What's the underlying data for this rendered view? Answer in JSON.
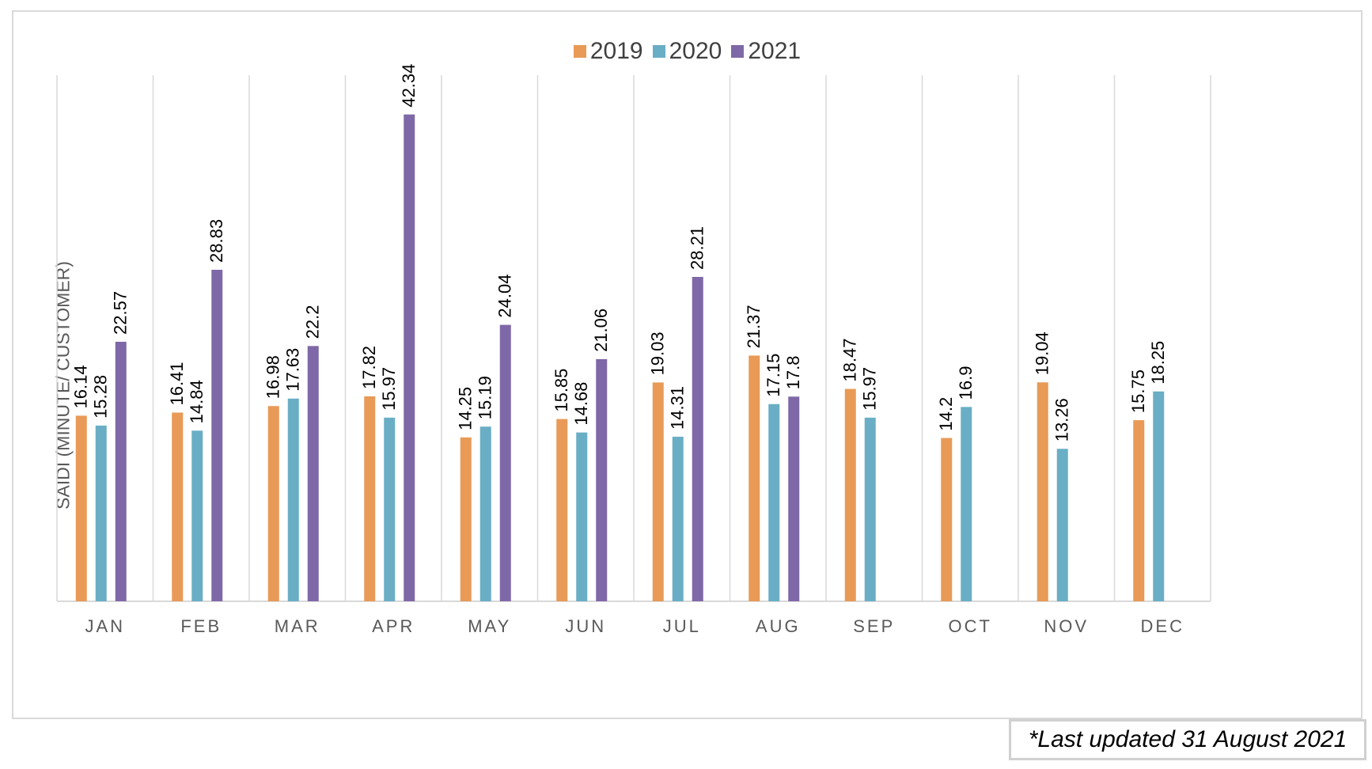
{
  "chart_data": {
    "type": "bar",
    "title": "",
    "xlabel": "",
    "ylabel": "SAIDI (MINUTE/ CUSTOMER)",
    "ylim": [
      0,
      45
    ],
    "grid": "vertical separators",
    "legend_position": "top-center",
    "categories": [
      "JAN",
      "FEB",
      "MAR",
      "APR",
      "MAY",
      "JUN",
      "JUL",
      "AUG",
      "SEP",
      "OCT",
      "NOV",
      "DEC"
    ],
    "series": [
      {
        "name": "2019",
        "color": "#e89a56",
        "values": [
          16.14,
          16.41,
          16.98,
          17.82,
          14.25,
          15.85,
          19.03,
          21.37,
          18.47,
          14.2,
          19.04,
          15.75
        ]
      },
      {
        "name": "2020",
        "color": "#69aec5",
        "values": [
          15.28,
          14.84,
          17.63,
          15.97,
          15.19,
          14.68,
          14.31,
          17.15,
          15.97,
          16.9,
          13.26,
          18.25
        ]
      },
      {
        "name": "2021",
        "color": "#7f68a7",
        "values": [
          22.57,
          28.83,
          22.2,
          42.34,
          24.04,
          21.06,
          28.21,
          17.8,
          null,
          null,
          null,
          null
        ]
      }
    ]
  },
  "footnote": "*Last updated 31 August 2021"
}
